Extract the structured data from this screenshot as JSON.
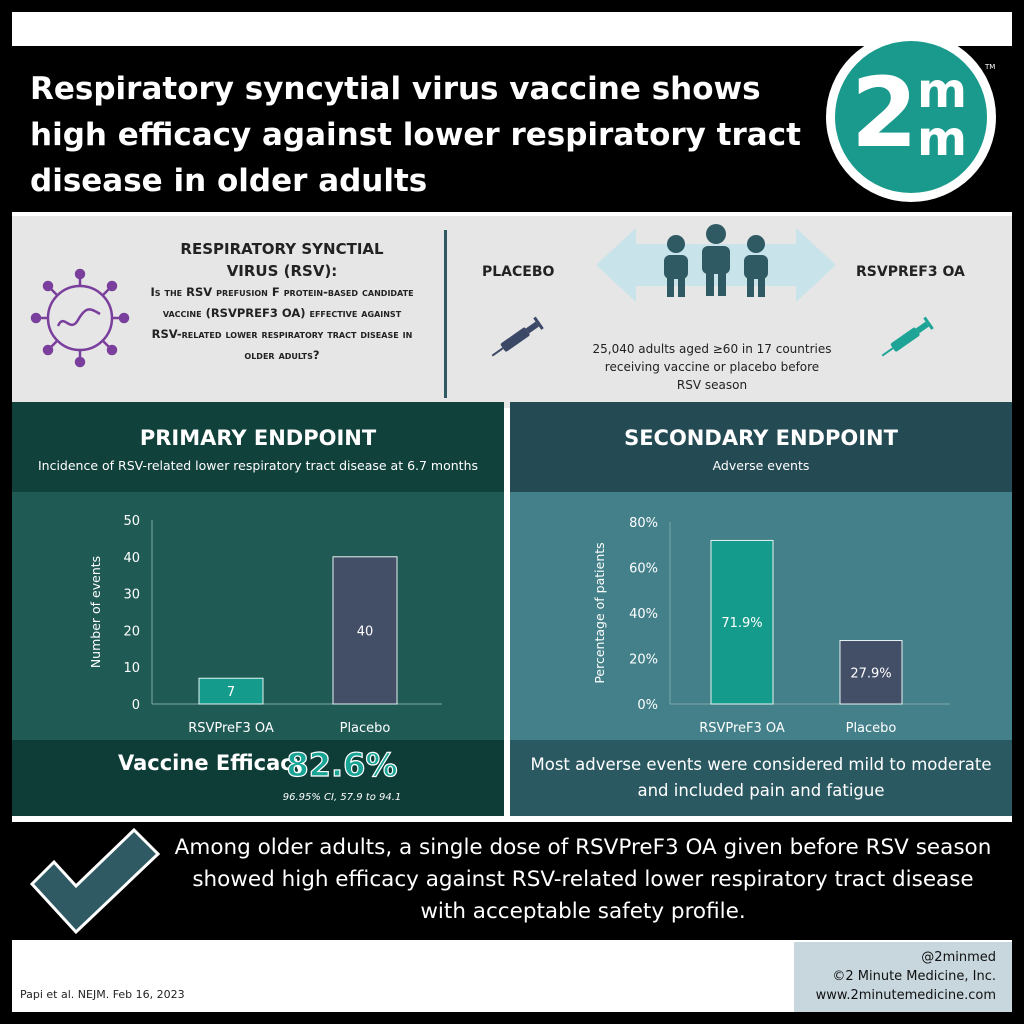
{
  "header": {
    "title": "Respiratory syncytial virus vaccine shows high efficacy against lower respiratory tract disease in older adults",
    "logo": {
      "two": "2",
      "m1": "m",
      "m2": "m",
      "tm": "TM"
    }
  },
  "question": {
    "title": "RESPIRATORY SYNCTIAL VIRUS (RSV):",
    "text": "Is the RSV prefusion F protein-based candidate vaccine (RSVPREF3 OA) effective against RSV-related lower respiratory tract disease in older adults?",
    "placebo_label": "PLACEBO",
    "vaccine_label": "RSVPREF3 OA",
    "population": "25,040 adults aged ≥60 in 17 countries receiving vaccine or placebo before RSV season"
  },
  "primary": {
    "title": "PRIMARY ENDPOINT",
    "subtitle": "Incidence of RSV-related lower respiratory tract disease at 6.7 months",
    "efficacy_label": "Vaccine Efficacy",
    "efficacy_value": "82.6%",
    "efficacy_ci": "96.95% CI, 57.9 to 94.1"
  },
  "secondary": {
    "title": "SECONDARY ENDPOINT",
    "subtitle": "Adverse events",
    "note": "Most adverse events were considered mild to moderate and included pain and fatigue"
  },
  "chart_data": [
    {
      "type": "bar",
      "title": "",
      "categories": [
        "RSVPreF3 OA",
        "Placebo"
      ],
      "values": [
        7,
        40
      ],
      "value_labels": [
        "7",
        "40"
      ],
      "ylabel": "Number of events",
      "ylim": [
        0,
        50
      ],
      "yticks": [
        0,
        10,
        20,
        30,
        40,
        50
      ],
      "ytick_labels": [
        "0",
        "10",
        "20",
        "30",
        "40",
        "50"
      ],
      "colors": [
        "#159b8b",
        "#434e67"
      ]
    },
    {
      "type": "bar",
      "title": "",
      "categories": [
        "RSVPreF3 OA",
        "Placebo"
      ],
      "values": [
        71.9,
        27.9
      ],
      "value_labels": [
        "71.9%",
        "27.9%"
      ],
      "ylabel": "Percentage of patients",
      "ylim": [
        0,
        80
      ],
      "yticks": [
        0,
        20,
        40,
        60,
        80
      ],
      "ytick_labels": [
        "0%",
        "20%",
        "40%",
        "60%",
        "80%"
      ],
      "colors": [
        "#159b8b",
        "#434e67"
      ]
    }
  ],
  "conclusion": {
    "text": "Among older adults, a single dose of RSVPreF3 OA given before RSV season showed high efficacy against RSV-related lower respiratory tract disease with acceptable safety profile."
  },
  "footer": {
    "citation": "Papi et al. NEJM. Feb 16, 2023",
    "handle": "@2minmed",
    "copyright": "©2 Minute Medicine, Inc.",
    "website": "www.2minutemedicine.com"
  },
  "colors": {
    "teal_logo": "#1a9a8c",
    "primary_panel": "#1f5b54",
    "secondary_panel": "#43808a",
    "vaccine_bar": "#159b8b",
    "placebo_bar": "#434e67"
  }
}
